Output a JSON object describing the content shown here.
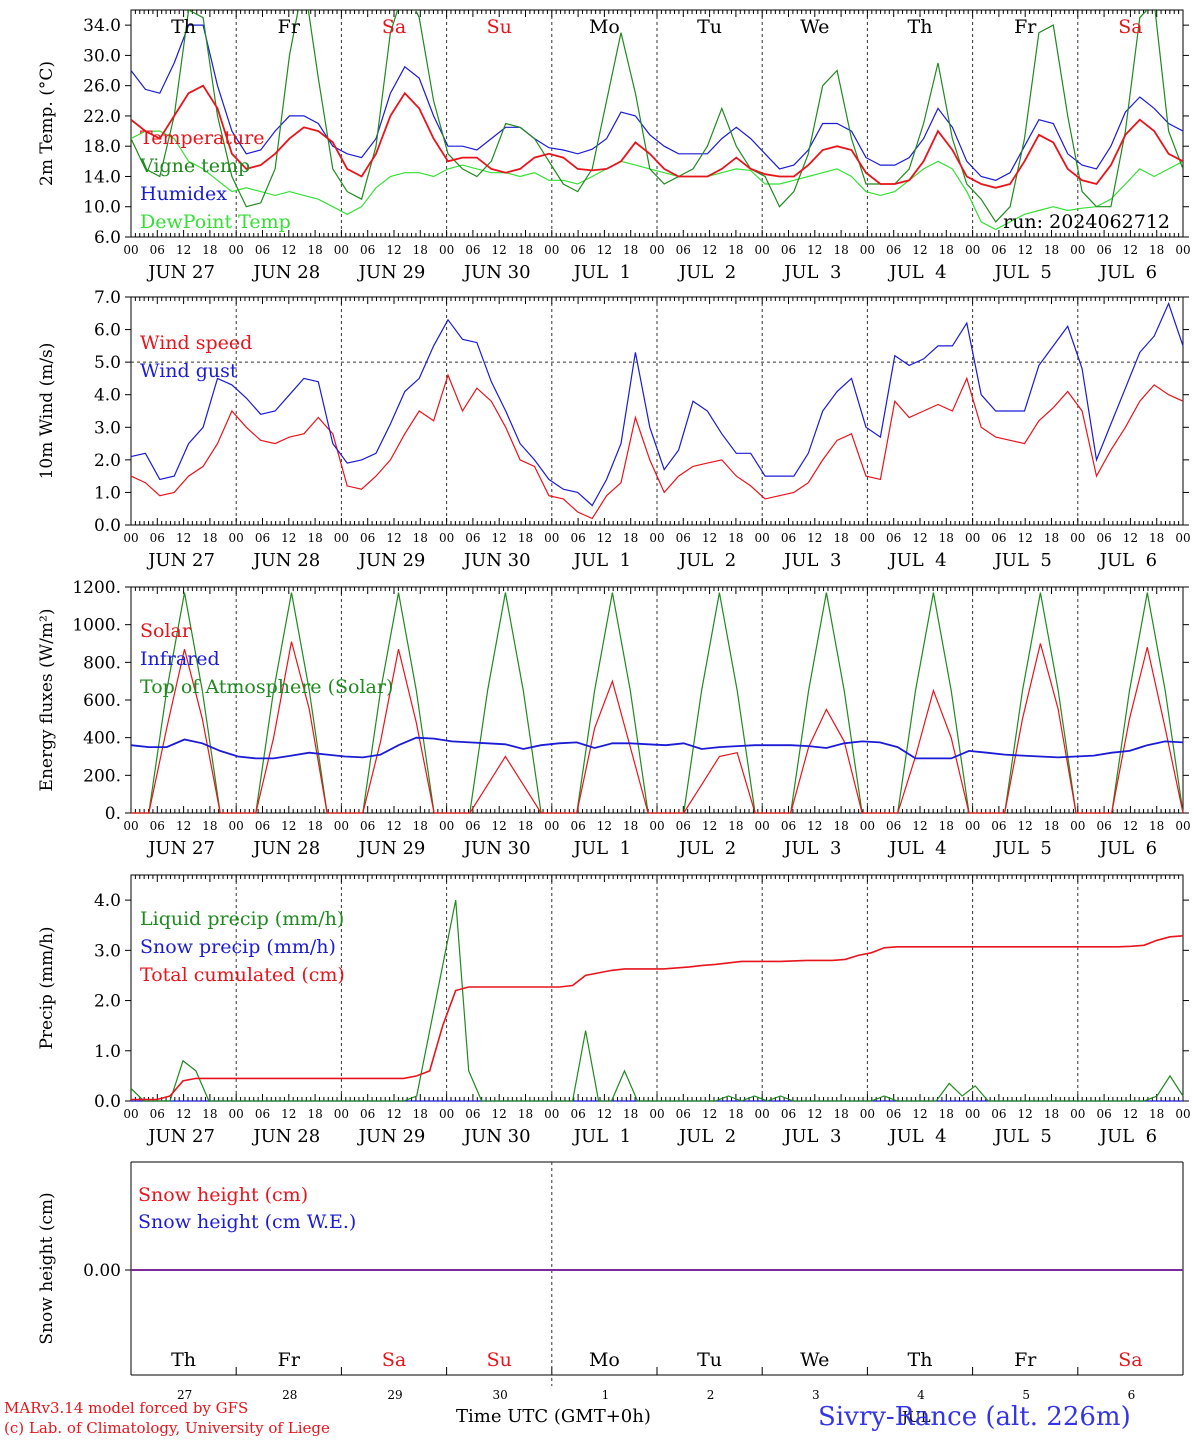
{
  "colors": {
    "red": "#e8141c",
    "blue": "#1b1bd6",
    "green": "#1f8a1f",
    "lightgreen": "#35e035",
    "purple": "#7a2a9a",
    "axis": "#000000"
  },
  "date_labels": [
    "JUN 27",
    "JUN 28",
    "JUN 29",
    "JUN 30",
    "JUL  1",
    "JUL  2",
    "JUL  3",
    "JUL  4",
    "JUL  5",
    "JUL  6"
  ],
  "hour_labels": [
    "00",
    "06",
    "12",
    "18"
  ],
  "weekday_labels": [
    "Th",
    "Fr",
    "Sa",
    "Su",
    "Mo",
    "Tu",
    "We",
    "Th",
    "Fr",
    "Sa"
  ],
  "weekday_colors": [
    "#000000",
    "#000000",
    "#e8141c",
    "#e8141c",
    "#000000",
    "#000000",
    "#000000",
    "#000000",
    "#000000",
    "#e8141c"
  ],
  "day_numbers": [
    "27",
    "28",
    "29",
    "30",
    "1",
    "2",
    "3",
    "4",
    "5",
    "6"
  ],
  "run_label": "run: 2024062712",
  "footer": {
    "model": "MARv3.14 model forced by GFS",
    "lab": "(c) Lab. of Climatology, University of Liege",
    "xaxis": "Time UTC (GMT+0h)",
    "month": "JUL",
    "station": "Sivry-Rance (alt. 226m)"
  },
  "chart_data": [
    {
      "type": "line",
      "ylabel": "2m Temp. (°C)",
      "ylim": [
        6,
        36
      ],
      "yticks": [
        "6.0",
        "10.0",
        "14.0",
        "18.0",
        "22.0",
        "26.0",
        "30.0",
        "34.0"
      ],
      "grid": "vertical day lines dashed",
      "legend_placement": "left",
      "x_hours_step": 6,
      "series": [
        {
          "name": "Temperature",
          "color": "#e8141c",
          "values": [
            21.5,
            20,
            19,
            22,
            25,
            26,
            23,
            17,
            15,
            15.5,
            17,
            19,
            20.5,
            20,
            18.5,
            15,
            14,
            17,
            22,
            25,
            23,
            19,
            16,
            16.5,
            16.5,
            15,
            14.5,
            15,
            16.5,
            17,
            16.5,
            15,
            14.8,
            15,
            16,
            18.5,
            17,
            15,
            14,
            14,
            14,
            15,
            16.5,
            15,
            14.3,
            14,
            14,
            15.5,
            17.5,
            18,
            17.5,
            14.5,
            13,
            13,
            13.5,
            16,
            20,
            17.5,
            14,
            13,
            12.5,
            13,
            16,
            19.5,
            18.5,
            15,
            13.5,
            13,
            15.5,
            19.5,
            21.5,
            20,
            17,
            16
          ]
        },
        {
          "name": "Vigne temp",
          "color": "#1f8a1f",
          "values": [
            19,
            15,
            14,
            22,
            36,
            35,
            22,
            14,
            10,
            10.5,
            15,
            30,
            40,
            27,
            15,
            12,
            11,
            18,
            33,
            39,
            35,
            24,
            17,
            15,
            14,
            16,
            21,
            20.5,
            19,
            16,
            13,
            12,
            15,
            24,
            33,
            25,
            15,
            13,
            14,
            15,
            18,
            23,
            18,
            15,
            14,
            10,
            12,
            17,
            26,
            28,
            19,
            13,
            13,
            13,
            15,
            21,
            29,
            19,
            13,
            11,
            8,
            10,
            19,
            33,
            34,
            22,
            12,
            10,
            10,
            20,
            35,
            37,
            20,
            15
          ]
        },
        {
          "name": "Humidex",
          "color": "#1b1bd6",
          "values": [
            28,
            25.5,
            25,
            29,
            34,
            34,
            26,
            20,
            17,
            17.5,
            20,
            22,
            22,
            21,
            18,
            17,
            16.5,
            19,
            25,
            28.5,
            27,
            22,
            18,
            18,
            17.5,
            19,
            20.5,
            20.5,
            19,
            17.8,
            17.5,
            17,
            17.6,
            19,
            22.5,
            22,
            19.5,
            18,
            17,
            17,
            17,
            19,
            20.5,
            19,
            17,
            15,
            15.5,
            17.5,
            21,
            21,
            20,
            16.5,
            15.5,
            15.5,
            16.5,
            19,
            23,
            20.5,
            16,
            14,
            13.5,
            14.5,
            18,
            21.5,
            21,
            17,
            15.5,
            15,
            18,
            22.5,
            24.5,
            23,
            21,
            20
          ]
        },
        {
          "name": "DewPoint Temp",
          "color": "#35e035",
          "values": [
            19,
            20,
            20,
            19,
            16,
            15,
            13.5,
            12,
            12.5,
            12,
            11.5,
            12,
            11.5,
            11,
            10,
            9,
            10,
            12.5,
            14,
            14.5,
            14.5,
            14,
            15,
            15.5,
            15,
            14.5,
            14.5,
            14,
            14.5,
            13.5,
            13.5,
            13,
            14,
            15,
            16,
            15.5,
            15,
            14.5,
            14,
            14,
            14,
            14.5,
            15,
            14.8,
            13,
            13,
            13.5,
            14,
            14.5,
            15,
            14,
            12,
            11.5,
            12,
            13.5,
            15,
            16,
            15,
            12,
            8,
            7,
            8,
            9,
            9.5,
            10,
            9.5,
            9.8,
            10,
            11,
            13,
            15,
            14,
            15,
            16
          ]
        }
      ]
    },
    {
      "type": "line",
      "ylabel": "10m Wind (m/s)",
      "ylim": [
        0,
        7
      ],
      "yticks": [
        "0.0",
        "1.0",
        "2.0",
        "3.0",
        "4.0",
        "5.0",
        "6.0",
        "7.0"
      ],
      "reference_line": 5.0,
      "legend_placement": "left",
      "x_hours_step": 6,
      "series": [
        {
          "name": "Wind speed",
          "color": "#e8141c",
          "values": [
            1.5,
            1.3,
            0.9,
            1.0,
            1.5,
            1.8,
            2.5,
            3.5,
            3.0,
            2.6,
            2.5,
            2.7,
            2.8,
            3.3,
            2.8,
            1.2,
            1.1,
            1.5,
            2.0,
            2.8,
            3.5,
            3.2,
            4.6,
            3.5,
            4.2,
            3.8,
            3.0,
            2.0,
            1.8,
            0.9,
            0.8,
            0.4,
            0.2,
            0.9,
            1.3,
            3.3,
            2.0,
            1.0,
            1.5,
            1.8,
            1.9,
            2.0,
            1.5,
            1.2,
            0.8,
            0.9,
            1.0,
            1.3,
            2.0,
            2.6,
            2.8,
            1.5,
            1.4,
            3.8,
            3.3,
            3.5,
            3.7,
            3.5,
            4.5,
            3.0,
            2.7,
            2.6,
            2.5,
            3.2,
            3.6,
            4.1,
            3.5,
            1.5,
            2.3,
            3.0,
            3.8,
            4.3,
            4.0,
            3.8
          ]
        },
        {
          "name": "Wind gust",
          "color": "#1b1bd6",
          "values": [
            2.1,
            2.2,
            1.4,
            1.5,
            2.5,
            3.0,
            4.5,
            4.3,
            3.9,
            3.4,
            3.5,
            4.0,
            4.5,
            4.4,
            2.5,
            1.9,
            2.0,
            2.2,
            3.1,
            4.1,
            4.5,
            5.5,
            6.3,
            5.7,
            5.6,
            4.4,
            3.5,
            2.5,
            2.0,
            1.4,
            1.1,
            1.0,
            0.6,
            1.4,
            2.5,
            5.3,
            3.0,
            1.7,
            2.3,
            3.8,
            3.5,
            2.8,
            2.2,
            2.2,
            1.5,
            1.5,
            1.5,
            2.2,
            3.5,
            4.1,
            4.5,
            3.0,
            2.7,
            5.2,
            4.9,
            5.1,
            5.5,
            5.5,
            6.2,
            4.0,
            3.5,
            3.5,
            3.5,
            4.9,
            5.5,
            6.1,
            4.8,
            2.0,
            3.1,
            4.2,
            5.3,
            5.8,
            6.8,
            5.5
          ]
        }
      ]
    },
    {
      "type": "line",
      "ylabel": "Energy fluxes (W/m²)",
      "ylim": [
        0,
        1200
      ],
      "yticks": [
        "0.",
        "200.",
        "400.",
        "600.",
        "800.",
        "1000.",
        "1200."
      ],
      "legend_placement": "left",
      "x_hours_step": 6,
      "series": [
        {
          "name": "Solar",
          "color": "#e8141c",
          "values": [
            0,
            0,
            450,
            870,
            500,
            0,
            0,
            0,
            400,
            910,
            550,
            0,
            0,
            0,
            380,
            870,
            480,
            0,
            0,
            0,
            150,
            300,
            150,
            0,
            0,
            0,
            450,
            700,
            350,
            0,
            0,
            0,
            150,
            300,
            320,
            0,
            0,
            0,
            350,
            550,
            380,
            0,
            0,
            0,
            300,
            650,
            400,
            0,
            0,
            0,
            500,
            900,
            550,
            0,
            0,
            0,
            500,
            880,
            450,
            0
          ]
        },
        {
          "name": "Infrared",
          "color": "#1b1bd6",
          "values": [
            360,
            350,
            350,
            390,
            370,
            330,
            300,
            290,
            290,
            305,
            320,
            310,
            300,
            295,
            310,
            360,
            400,
            395,
            380,
            375,
            370,
            365,
            340,
            360,
            370,
            375,
            345,
            370,
            370,
            365,
            360,
            370,
            340,
            350,
            355,
            360,
            360,
            360,
            355,
            345,
            370,
            380,
            375,
            350,
            290,
            290,
            290,
            330,
            320,
            310,
            305,
            300,
            295,
            300,
            305,
            320,
            330,
            360,
            380,
            375
          ]
        },
        {
          "name": "Top of Atmosphere (Solar)",
          "color": "#1f8a1f",
          "values": [
            0,
            0,
            650,
            1170,
            650,
            0,
            0,
            0,
            650,
            1170,
            650,
            0,
            0,
            0,
            650,
            1170,
            650,
            0,
            0,
            0,
            650,
            1170,
            650,
            0,
            0,
            0,
            650,
            1170,
            650,
            0,
            0,
            0,
            650,
            1170,
            650,
            0,
            0,
            0,
            650,
            1170,
            650,
            0,
            0,
            0,
            650,
            1170,
            650,
            0,
            0,
            0,
            650,
            1170,
            650,
            0,
            0,
            0,
            650,
            1170,
            650,
            0
          ]
        }
      ]
    },
    {
      "type": "line",
      "ylabel": "Precip (mm/h)",
      "ylim": [
        0,
        4.5
      ],
      "yticks": [
        "0.0",
        "1.0",
        "2.0",
        "3.0",
        "4.0"
      ],
      "legend_placement": "left",
      "x_hours_step": 6,
      "series": [
        {
          "name": "Liquid precip (mm/h)",
          "color": "#1f8a1f",
          "values": [
            0.25,
            0,
            0,
            0,
            0.8,
            0.6,
            0,
            0,
            0,
            0,
            0,
            0,
            0,
            0,
            0,
            0,
            0,
            0,
            0,
            0,
            0,
            0,
            0.1,
            1.4,
            2.7,
            4.0,
            0.6,
            0,
            0,
            0,
            0,
            0,
            0,
            0,
            0,
            1.4,
            0,
            0,
            0.6,
            0,
            0,
            0,
            0,
            0,
            0,
            0,
            0.1,
            0,
            0.1,
            0,
            0.1,
            0,
            0,
            0,
            0,
            0,
            0,
            0,
            0.1,
            0,
            0,
            0,
            0,
            0.35,
            0.1,
            0.3,
            0,
            0,
            0,
            0,
            0,
            0,
            0,
            0,
            0,
            0,
            0,
            0,
            0,
            0.1,
            0.5,
            0.1
          ]
        },
        {
          "name": "Snow precip (mm/h)",
          "color": "#1b1bd6",
          "values": [
            0,
            0,
            0,
            0,
            0,
            0,
            0,
            0,
            0,
            0,
            0,
            0,
            0,
            0,
            0,
            0,
            0,
            0,
            0,
            0,
            0,
            0,
            0,
            0,
            0,
            0,
            0,
            0,
            0,
            0,
            0,
            0,
            0,
            0,
            0,
            0,
            0,
            0,
            0,
            0,
            0,
            0,
            0,
            0,
            0,
            0,
            0,
            0,
            0,
            0,
            0,
            0,
            0,
            0,
            0,
            0,
            0,
            0,
            0,
            0,
            0,
            0,
            0,
            0,
            0,
            0,
            0,
            0,
            0,
            0,
            0,
            0,
            0,
            0,
            0,
            0,
            0,
            0,
            0,
            0,
            0,
            0
          ]
        },
        {
          "name": "Total cumulated (cm)",
          "color": "#e8141c",
          "values": [
            0.03,
            0.03,
            0.03,
            0.1,
            0.4,
            0.45,
            0.45,
            0.45,
            0.45,
            0.45,
            0.45,
            0.45,
            0.45,
            0.45,
            0.45,
            0.45,
            0.45,
            0.45,
            0.45,
            0.45,
            0.45,
            0.45,
            0.5,
            0.6,
            1.5,
            2.2,
            2.27,
            2.27,
            2.27,
            2.27,
            2.27,
            2.27,
            2.27,
            2.27,
            2.3,
            2.5,
            2.55,
            2.6,
            2.63,
            2.63,
            2.63,
            2.63,
            2.65,
            2.67,
            2.7,
            2.72,
            2.75,
            2.78,
            2.78,
            2.78,
            2.78,
            2.79,
            2.8,
            2.8,
            2.8,
            2.82,
            2.9,
            2.95,
            3.05,
            3.07,
            3.07,
            3.07,
            3.07,
            3.07,
            3.07,
            3.07,
            3.07,
            3.07,
            3.07,
            3.07,
            3.07,
            3.07,
            3.07,
            3.07,
            3.07,
            3.07,
            3.07,
            3.08,
            3.1,
            3.2,
            3.27,
            3.29
          ]
        }
      ]
    },
    {
      "type": "line",
      "ylabel": "Snow height (cm)",
      "yticks": [
        "0.00"
      ],
      "legend_placement": "left",
      "series": [
        {
          "name": "Snow height (cm)",
          "color": "#e8141c",
          "values": [
            0,
            0
          ]
        },
        {
          "name": "Snow height (cm W.E.)",
          "color": "#1b1bd6",
          "values": [
            0,
            0
          ]
        }
      ]
    }
  ]
}
